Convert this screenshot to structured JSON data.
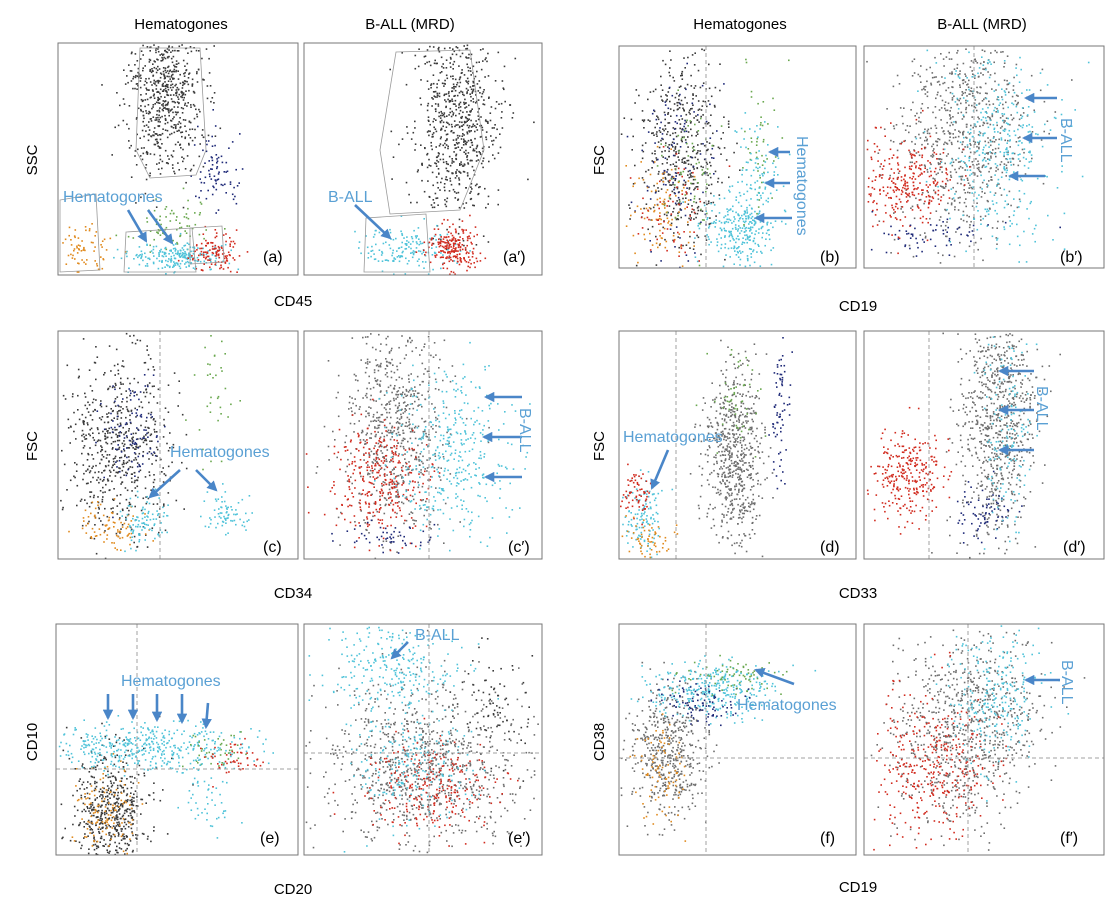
{
  "figure": {
    "colors": {
      "arrow": "#4a86c8",
      "annotation_text": "#5aa0d4",
      "gray_events": "#6e6e6e",
      "dark_events": "#3a3a3a",
      "cyan_events": "#4fc3d9",
      "red_events": "#d12b1f",
      "orange_events": "#e08a1e",
      "green_events": "#6aa84f",
      "navy_events": "#1f2a78",
      "quadrant_line": "#a0a0a0",
      "frame": "#777777"
    },
    "headers": {
      "left_a": "Hematogones",
      "left_b": "B-ALL (MRD)",
      "right_a": "Hematogones",
      "right_b": "B-ALL (MRD)"
    },
    "panels": [
      {
        "id": "a",
        "label": "(a)"
      },
      {
        "id": "a2",
        "label": "(a′)"
      },
      {
        "id": "b",
        "label": "(b)"
      },
      {
        "id": "b2",
        "label": "(b′)"
      },
      {
        "id": "c",
        "label": "(c)"
      },
      {
        "id": "c2",
        "label": "(c′)"
      },
      {
        "id": "d",
        "label": "(d)"
      },
      {
        "id": "d2",
        "label": "(d′)"
      },
      {
        "id": "e",
        "label": "(e)"
      },
      {
        "id": "e2",
        "label": "(e′)"
      },
      {
        "id": "f",
        "label": "(f)"
      },
      {
        "id": "f2",
        "label": "(f′)"
      }
    ],
    "axis_labels": {
      "row1_left_x": "CD45",
      "row1_left_y": "SSC",
      "row1_right_x": "CD19",
      "row1_right_y": "FSC",
      "row2_left_x": "CD34",
      "row2_left_y": "FSC",
      "row2_right_x": "CD33",
      "row2_right_y": "FSC",
      "row3_left_x": "CD20",
      "row3_left_y": "CD10",
      "row3_right_x": "CD19",
      "row3_right_y": "CD38"
    },
    "annotations": {
      "hematogones": "Hematogones",
      "ball": "B-ALL"
    }
  }
}
